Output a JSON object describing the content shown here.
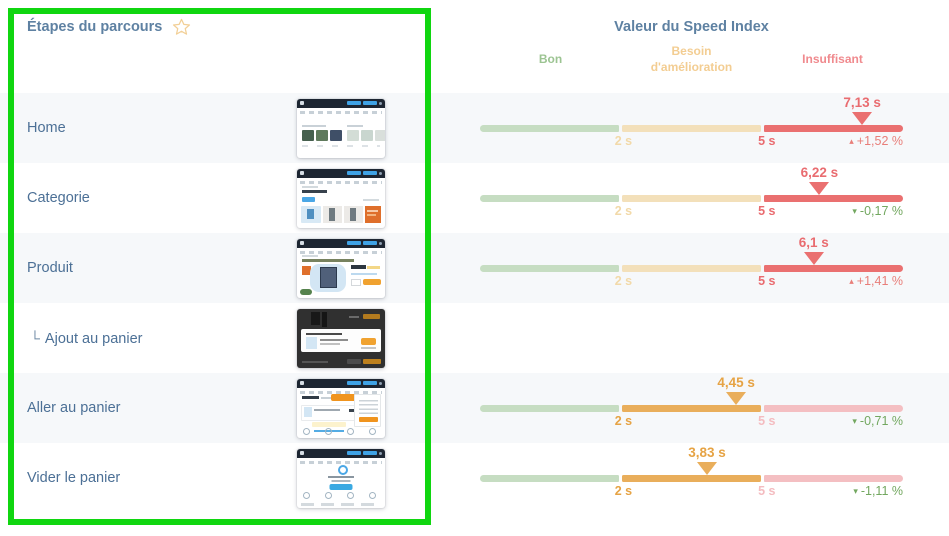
{
  "header": {
    "steps_title": "Étapes du parcours",
    "value_title": "Valeur du Speed Index",
    "zones": [
      {
        "label": "Bon",
        "color": "#9cc492"
      },
      {
        "label": "Besoin d'amélioration",
        "color": "#f3cd92"
      },
      {
        "label": "Insuffisant",
        "color": "#f08a8e"
      }
    ]
  },
  "scale": {
    "tick1_label": "2 s",
    "tick2_label": "5 s",
    "tick1_s": 2,
    "tick2_s": 5,
    "max_s": 8
  },
  "icons": {
    "star": "star-outline",
    "substep_connector": "└",
    "trend_up": "▴",
    "trend_down": "▾"
  },
  "colors": {
    "highlight_box": "#10d610",
    "title_text": "#5e81a2",
    "step_text": "#4c7096",
    "stripe": "#f6f8fa",
    "zone_good_pale": "#c6ddc2",
    "zone_warn_pale": "#f3e0ba",
    "zone_bad_pale": "#f4bfc2",
    "zone_warn_strong": "#e9ae5b",
    "zone_bad_strong": "#ea7070",
    "delta_up": "#e87e79",
    "delta_down": "#72a75f"
  },
  "rows": [
    {
      "label": "Home",
      "substep": false,
      "thumbnail": "home",
      "value_s": 7.13,
      "value_label": "7,13 s",
      "delta": "+1,52 %"
    },
    {
      "label": "Categorie",
      "substep": false,
      "thumbnail": "cat",
      "value_s": 6.22,
      "value_label": "6,22 s",
      "delta": "-0,17 %"
    },
    {
      "label": "Produit",
      "substep": false,
      "thumbnail": "prod",
      "value_s": 6.1,
      "value_label": "6,1 s",
      "delta": "+1,41 %"
    },
    {
      "label": "Ajout au panier",
      "substep": true,
      "thumbnail": "modal",
      "value_s": null,
      "value_label": "",
      "delta": ""
    },
    {
      "label": "Aller au panier",
      "substep": false,
      "thumbnail": "cart",
      "value_s": 4.45,
      "value_label": "4,45 s",
      "delta": "-0,71 %"
    },
    {
      "label": "Vider le panier",
      "substep": false,
      "thumbnail": "empty",
      "value_s": 3.83,
      "value_label": "3,83 s",
      "delta": "-1,11 %"
    }
  ]
}
